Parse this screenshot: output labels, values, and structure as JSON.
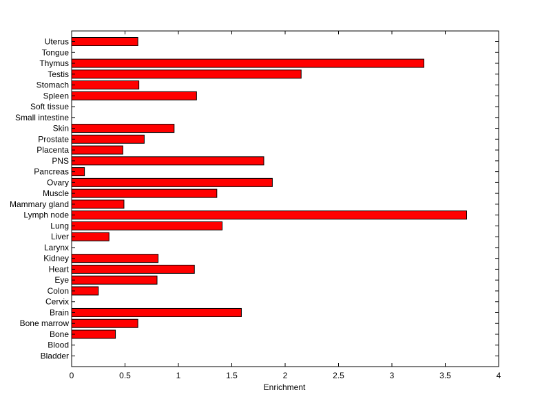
{
  "chart_data": {
    "type": "bar",
    "orientation": "horizontal",
    "title": "",
    "xlabel": "Enrichment",
    "ylabel": "",
    "xlim": [
      0,
      4
    ],
    "x_ticks": [
      0,
      0.5,
      1,
      1.5,
      2,
      2.5,
      3,
      3.5,
      4
    ],
    "x_tick_labels": [
      "0",
      "0.5",
      "1",
      "1.5",
      "2",
      "2.5",
      "3",
      "3.5",
      "4"
    ],
    "grid": false,
    "bar_color": "#ff0000",
    "bar_edge_color": "#000000",
    "categories": [
      "Uterus",
      "Tongue",
      "Thymus",
      "Testis",
      "Stomach",
      "Spleen",
      "Soft tissue",
      "Small intestine",
      "Skin",
      "Prostate",
      "Placenta",
      "PNS",
      "Pancreas",
      "Ovary",
      "Muscle",
      "Mammary gland",
      "Lymph node",
      "Lung",
      "Liver",
      "Larynx",
      "Kidney",
      "Heart",
      "Eye",
      "Colon",
      "Cervix",
      "Brain",
      "Bone marrow",
      "Bone",
      "Blood",
      "Bladder"
    ],
    "values": [
      0.62,
      0,
      3.3,
      2.15,
      0.63,
      1.17,
      0,
      0,
      0.96,
      0.68,
      0.48,
      1.8,
      0.12,
      1.88,
      1.36,
      0.49,
      3.7,
      1.41,
      0.35,
      0,
      0.81,
      1.15,
      0.8,
      0.25,
      0,
      1.59,
      0.62,
      0.41,
      0,
      0
    ]
  }
}
